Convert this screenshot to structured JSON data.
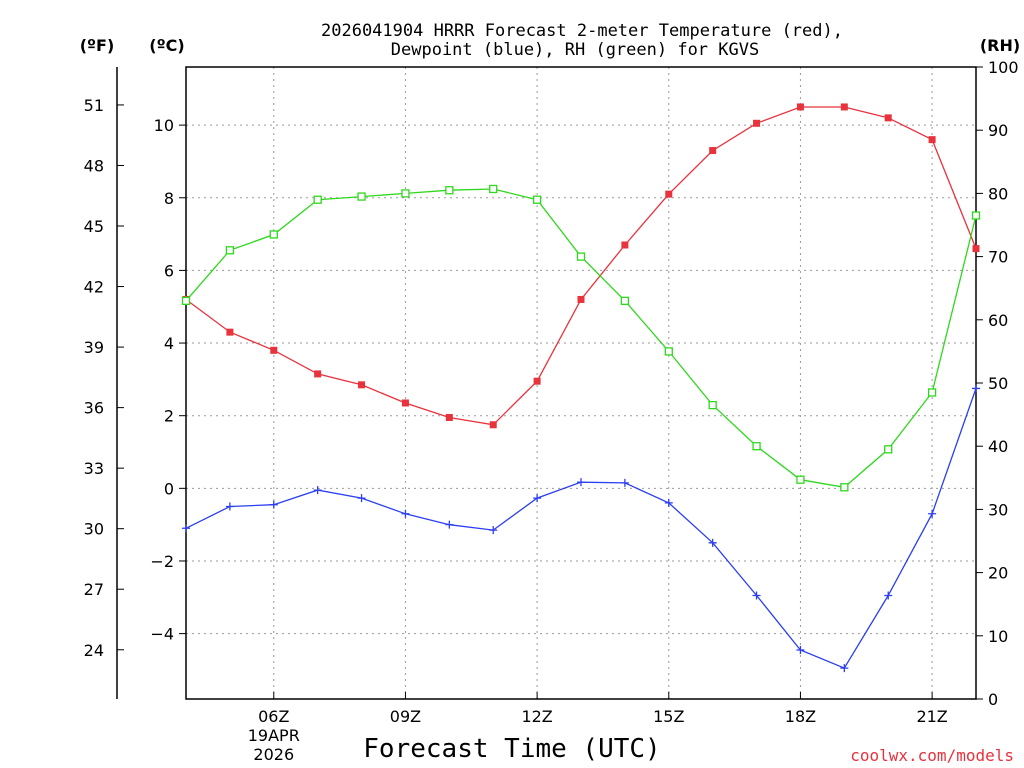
{
  "chart_data": {
    "type": "line",
    "title_line1": "2026041904 HRRR Forecast 2-meter Temperature (red),",
    "title_line2": "Dewpoint (blue), RH (green) for KGVS",
    "xlabel": "Forecast Time (UTC)",
    "credit": "coolwx.com/models",
    "units": {
      "fahrenheit": "(ºF)",
      "celsius": "(ºC)",
      "rh": "(RH)"
    },
    "x_hours": [
      4,
      5,
      6,
      7,
      8,
      9,
      10,
      11,
      12,
      13,
      14,
      15,
      16,
      17,
      18,
      19,
      20,
      21,
      22
    ],
    "xlim": [
      4,
      22
    ],
    "x_ticks": [
      {
        "hour": 6,
        "label": "06Z",
        "sub1": "19APR",
        "sub2": "2026"
      },
      {
        "hour": 9,
        "label": "09Z"
      },
      {
        "hour": 12,
        "label": "12Z"
      },
      {
        "hour": 15,
        "label": "15Z"
      },
      {
        "hour": 18,
        "label": "18Z"
      },
      {
        "hour": 21,
        "label": "21Z"
      }
    ],
    "celsius_axis": {
      "ylim": [
        -5.8,
        11.6
      ],
      "ticks": [
        -4,
        -2,
        0,
        2,
        4,
        6,
        8,
        10
      ]
    },
    "fahrenheit_axis": {
      "ticks": [
        24,
        27,
        30,
        33,
        36,
        39,
        42,
        45,
        48,
        51
      ]
    },
    "rh_axis": {
      "ylim": [
        0,
        100
      ],
      "ticks": [
        0,
        10,
        20,
        30,
        40,
        50,
        60,
        70,
        80,
        90,
        100
      ]
    },
    "series": [
      {
        "name": "Temperature",
        "units": "C",
        "color": "#e8323c",
        "marker": "filled-square",
        "values": [
          5.2,
          4.3,
          3.8,
          3.15,
          2.85,
          2.35,
          1.95,
          1.75,
          2.95,
          5.2,
          6.7,
          8.1,
          9.3,
          10.05,
          10.5,
          10.5,
          10.2,
          9.6,
          6.6
        ]
      },
      {
        "name": "Dewpoint",
        "units": "C",
        "color": "#2b3ff0",
        "marker": "plus",
        "values": [
          -1.1,
          -0.5,
          -0.45,
          -0.05,
          -0.27,
          -0.7,
          -1.0,
          -1.15,
          -0.27,
          0.17,
          0.15,
          -0.4,
          -1.5,
          -2.95,
          -4.45,
          -4.95,
          -2.95,
          -0.7,
          2.75
        ]
      },
      {
        "name": "RH",
        "units": "%",
        "color": "#2ed81c",
        "marker": "open-square",
        "values": [
          63,
          71,
          73.5,
          79,
          79.5,
          80,
          80.5,
          80.7,
          79,
          70,
          63,
          55,
          46.5,
          40,
          34.7,
          33.5,
          39.5,
          48.5,
          76.5
        ]
      }
    ]
  }
}
